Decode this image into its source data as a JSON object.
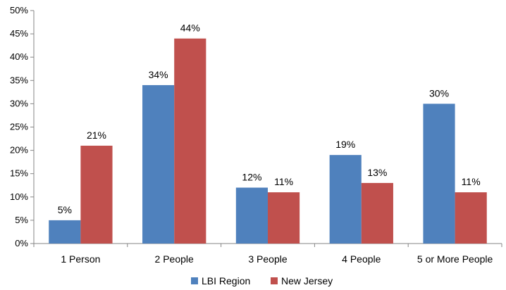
{
  "chart_data": {
    "type": "bar",
    "categories": [
      "1 Person",
      "2 People",
      "3 People",
      "4 People",
      "5 or More People"
    ],
    "series": [
      {
        "name": "LBI Region",
        "color": "#4F81BD",
        "values": [
          5,
          34,
          12,
          19,
          30
        ],
        "labels": [
          "5%",
          "34%",
          "12%",
          "19%",
          "30%"
        ]
      },
      {
        "name": "New Jersey",
        "color": "#C0504D",
        "values": [
          21,
          44,
          11,
          13,
          11
        ],
        "labels": [
          "21%",
          "44%",
          "11%",
          "13%",
          "11%"
        ]
      }
    ],
    "ylim": [
      0,
      50
    ],
    "yticks": [
      0,
      5,
      10,
      15,
      20,
      25,
      30,
      35,
      40,
      45,
      50
    ],
    "ytick_labels": [
      "0%",
      "5%",
      "10%",
      "15%",
      "20%",
      "25%",
      "30%",
      "35%",
      "40%",
      "45%",
      "50%"
    ],
    "grid": false,
    "legend_position": "bottom",
    "title": "",
    "xlabel": "",
    "ylabel": ""
  }
}
